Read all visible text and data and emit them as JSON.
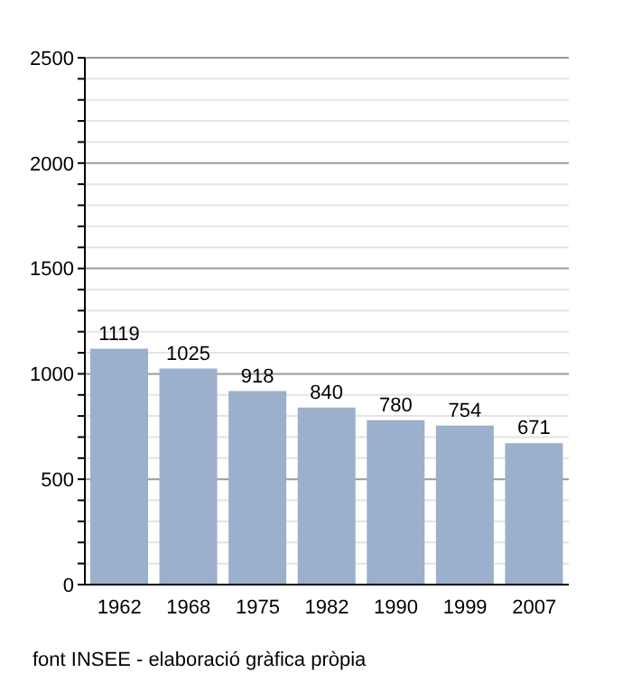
{
  "chart_data": {
    "type": "bar",
    "categories": [
      "1962",
      "1968",
      "1975",
      "1982",
      "1990",
      "1999",
      "2007"
    ],
    "values": [
      1119,
      1025,
      918,
      840,
      780,
      754,
      671
    ],
    "color": "#9ab0cc",
    "ylim": [
      0,
      2500
    ],
    "yticks": [
      0,
      {
        "value": 100,
        "label": null
      },
      {
        "value": 200,
        "label": null
      },
      {
        "value": 300,
        "label": null
      },
      {
        "value": 400,
        "label": null
      },
      500,
      {
        "value": 600,
        "label": null
      },
      {
        "value": 700,
        "label": null
      },
      {
        "value": 800,
        "label": null
      },
      {
        "value": 900,
        "label": null
      },
      1000,
      {
        "value": 1100,
        "label": null
      },
      {
        "value": 1200,
        "label": null
      },
      {
        "value": 1300,
        "label": null
      },
      {
        "value": 1400,
        "label": null
      },
      1500,
      {
        "value": 1600,
        "label": null
      },
      {
        "value": 1700,
        "label": null
      },
      {
        "value": 1800,
        "label": null
      },
      {
        "value": 1900,
        "label": null
      },
      2000,
      {
        "value": 2100,
        "label": null
      },
      {
        "value": 2200,
        "label": null
      },
      {
        "value": 2300,
        "label": null
      },
      {
        "value": 2400,
        "label": null
      },
      2500
    ],
    "grid": "y",
    "data_labels": true,
    "annotations": [
      "font INSEE - elaboració gràfica pròpia"
    ]
  }
}
